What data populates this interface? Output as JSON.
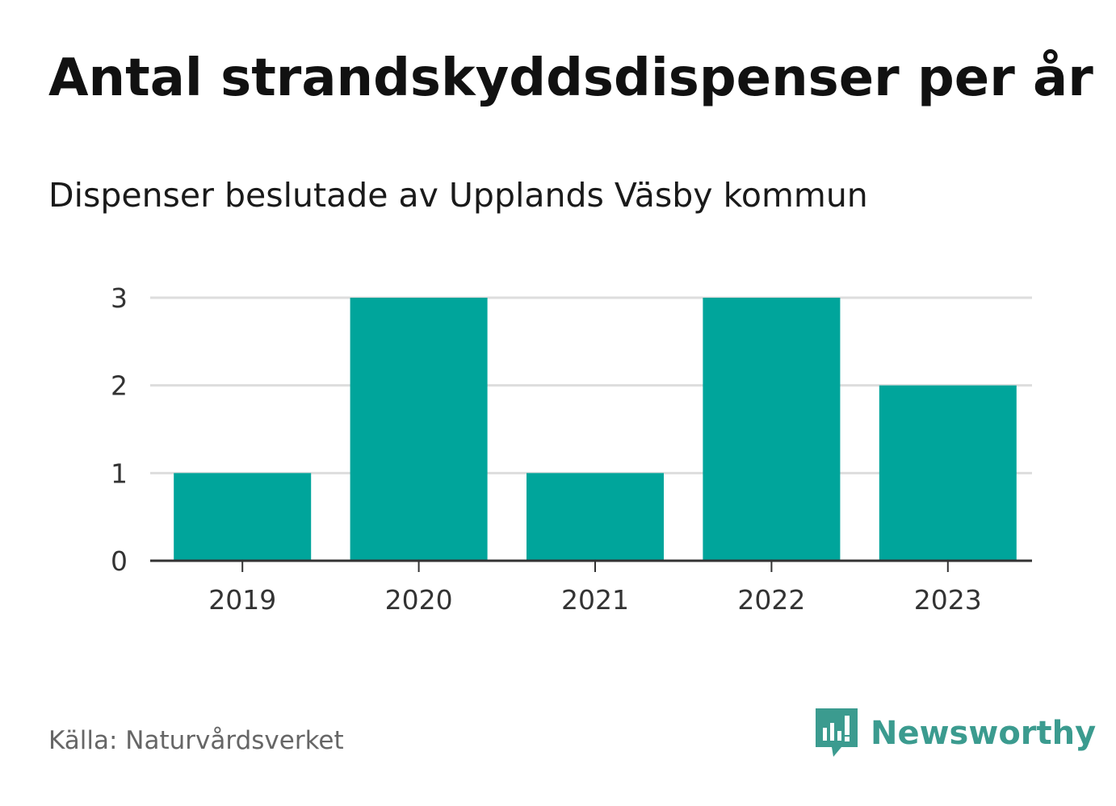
{
  "colors": {
    "bar": "#00a59b",
    "grid": "#dddddd",
    "axis": "#333333",
    "brand": "#3b9b8f"
  },
  "icons": {
    "brand": "newsworthy-logo-icon"
  },
  "source": "Källa: Naturvårdsverket",
  "brand_name": "Newsworthy",
  "chart_data": {
    "type": "bar",
    "title": "Antal strandskyddsdispenser per år",
    "subtitle": "Dispenser beslutade av Upplands Väsby kommun",
    "categories": [
      "2019",
      "2020",
      "2021",
      "2022",
      "2023"
    ],
    "series": [
      {
        "name": "Dispenser",
        "values": [
          1,
          3,
          1,
          3,
          2
        ]
      }
    ],
    "xlabel": "",
    "ylabel": "",
    "ylim": [
      0,
      3
    ],
    "yticks": [
      0,
      1,
      2,
      3
    ],
    "grid": true,
    "legend": "none"
  }
}
